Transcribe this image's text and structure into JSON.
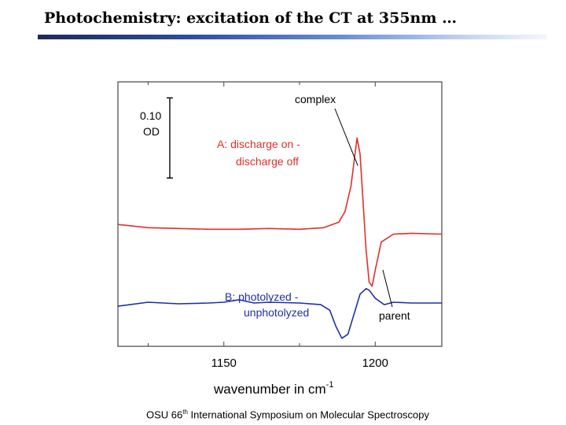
{
  "slide": {
    "title": "Photochemistry: excitation of the CT at 355nm …",
    "footer_prefix": "OSU 66",
    "footer_sup": "th",
    "footer_suffix": " International Symposium on Molecular Spectroscopy"
  },
  "chart_data": {
    "type": "line",
    "xlabel": "wavenumber in cm",
    "xlabel_sup": "-1",
    "xlim": [
      1115,
      1222
    ],
    "xticks": [
      1150,
      1200
    ],
    "xtick_labels": [
      "1150",
      "1200"
    ],
    "ylim": [
      -0.1,
      0.23
    ],
    "grid": false,
    "scale_bar": {
      "label_line1": "0.10",
      "label_line2": "OD",
      "from": 0.11,
      "to": 0.21
    },
    "annotations": [
      {
        "text": "complex",
        "color": "#000000",
        "points_to": [
          1194,
          0.09
        ]
      },
      {
        "text": "parent",
        "color": "#000000",
        "points_to": [
          1197,
          -0.04
        ]
      }
    ],
    "series": [
      {
        "label_line1": "A: discharge on -",
        "label_line2": "discharge off",
        "color": "#e0302a",
        "x": [
          1115,
          1125,
          1135,
          1145,
          1155,
          1165,
          1175,
          1183,
          1188,
          1190,
          1192,
          1193,
          1194,
          1195,
          1196,
          1197,
          1198,
          1199,
          1200,
          1202,
          1206,
          1212,
          1222
        ],
        "y": [
          0.052,
          0.048,
          0.047,
          0.046,
          0.046,
          0.047,
          0.046,
          0.048,
          0.055,
          0.068,
          0.1,
          0.13,
          0.16,
          0.14,
          0.08,
          0.02,
          -0.02,
          -0.025,
          -0.005,
          0.03,
          0.04,
          0.041,
          0.04
        ]
      },
      {
        "label_line1": "B: photolyzed -",
        "label_line2": "unphotolyzed",
        "color": "#1f2ea8",
        "x": [
          1115,
          1125,
          1135,
          1145,
          1150,
          1155,
          1160,
          1165,
          1175,
          1182,
          1185,
          1187,
          1189,
          1191,
          1193,
          1195,
          1197,
          1198,
          1200,
          1203,
          1206,
          1212,
          1222
        ],
        "y": [
          -0.05,
          -0.045,
          -0.047,
          -0.046,
          -0.045,
          -0.042,
          -0.046,
          -0.045,
          -0.046,
          -0.048,
          -0.055,
          -0.075,
          -0.09,
          -0.085,
          -0.06,
          -0.035,
          -0.028,
          -0.03,
          -0.04,
          -0.048,
          -0.045,
          -0.046,
          -0.046
        ]
      }
    ]
  }
}
